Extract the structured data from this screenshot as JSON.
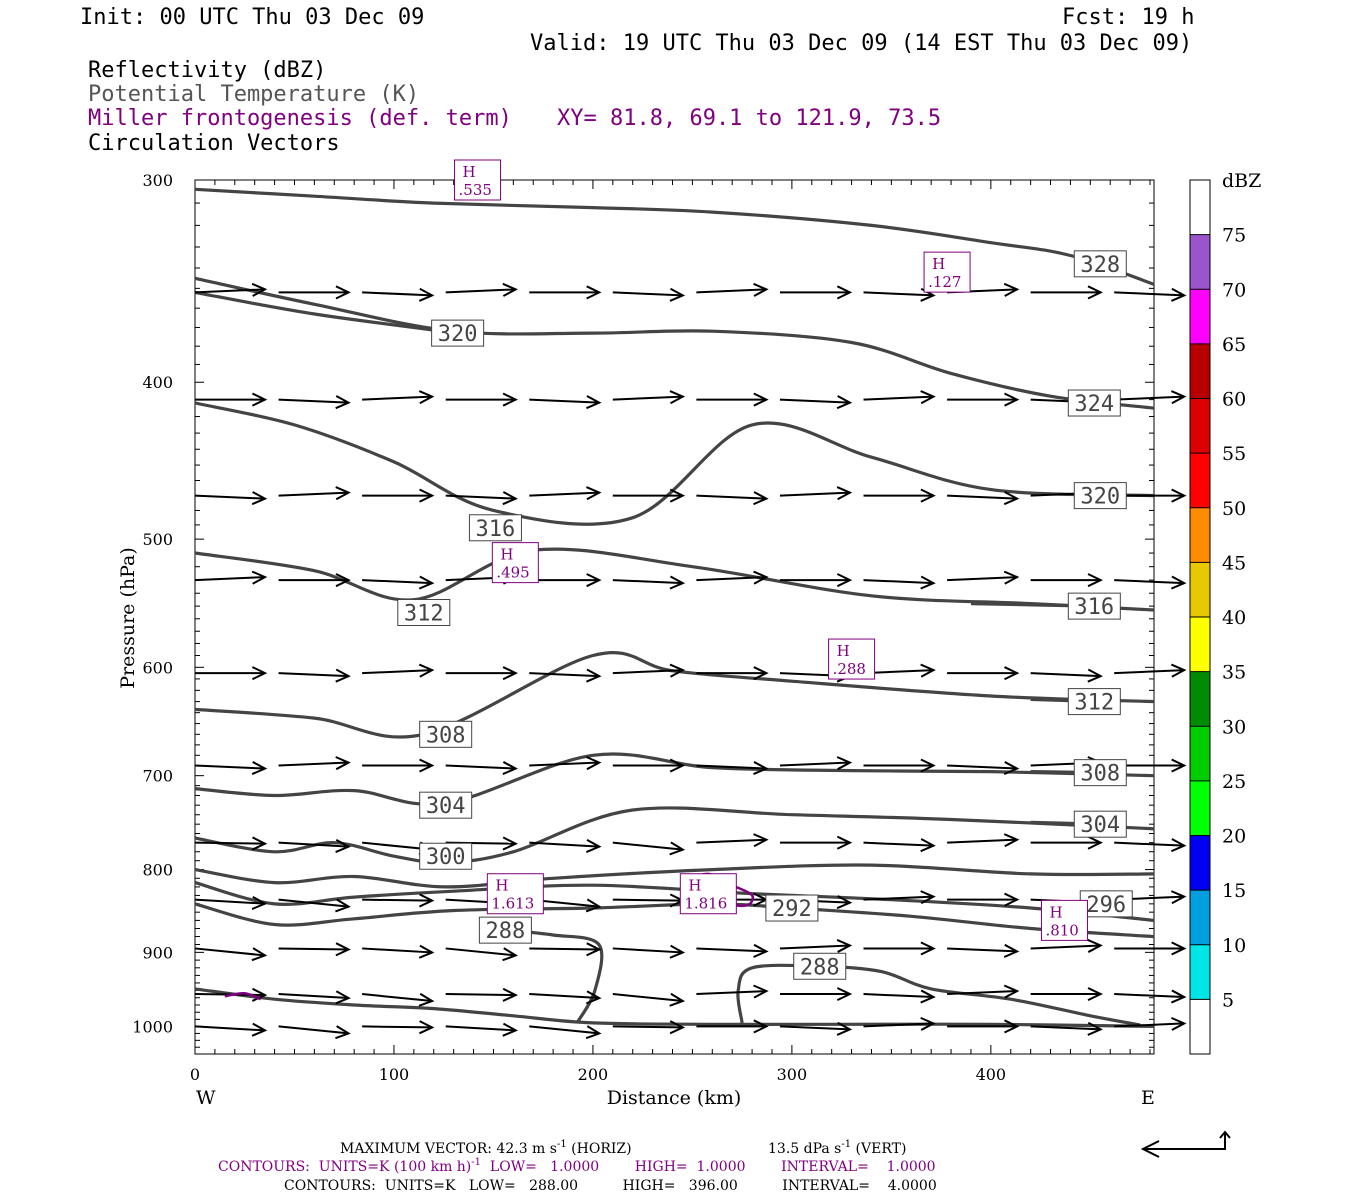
{
  "header": {
    "init": "Init: 00 UTC Thu 03 Dec 09",
    "fcst": "Fcst:   19 h",
    "valid": "Valid: 19 UTC Thu 03 Dec 09 (14 EST Thu 03 Dec 09)",
    "field1": "Reflectivity (dBZ)",
    "field2": "Potential Temperature (K)",
    "field3": "Miller frontogenesis (def. term)",
    "xy": "XY=  81.8, 69.1 to 121.9, 73.5",
    "field4": "Circulation Vectors"
  },
  "colors": {
    "theta_contour": "#444444",
    "frontogenesis": "#800080",
    "vectors": "#000000"
  },
  "chart_data": {
    "type": "line",
    "xlabel": "Distance (km)",
    "ylabel": "Pressure (hPa)",
    "xlim": [
      0,
      482
    ],
    "ylim": [
      1040,
      300
    ],
    "y_log_scale": true,
    "x_ticks": [
      0,
      100,
      200,
      300,
      400
    ],
    "y_ticks": [
      300,
      400,
      500,
      600,
      700,
      800,
      900,
      1000
    ],
    "left_label": "W",
    "right_label": "E",
    "theta_contours": [
      {
        "value": 328,
        "label": "328",
        "label_x": 455,
        "label_y": 338,
        "points": [
          [
            0,
            304
          ],
          [
            60,
            307
          ],
          [
            120,
            310
          ],
          [
            200,
            312
          ],
          [
            260,
            314
          ],
          [
            340,
            320
          ],
          [
            400,
            328
          ],
          [
            440,
            334
          ],
          [
            482,
            348
          ]
        ]
      },
      {
        "value": 324,
        "label": "324",
        "label_x": 452,
        "label_y": 412,
        "points": [
          [
            0,
            345
          ],
          [
            60,
            358
          ],
          [
            130,
            372
          ],
          [
            200,
            373
          ],
          [
            260,
            372
          ],
          [
            330,
            378
          ],
          [
            380,
            395
          ],
          [
            430,
            408
          ],
          [
            482,
            415
          ]
        ]
      },
      {
        "value": 320,
        "label": "320",
        "label_x": 132,
        "label_y": 373,
        "points": [
          [
            0,
            352
          ],
          [
            60,
            363
          ],
          [
            132,
            373
          ]
        ]
      },
      {
        "value": 320,
        "label": "320",
        "label_x": 455,
        "label_y": 470,
        "points": [
          [
            0,
            412
          ],
          [
            50,
            425
          ],
          [
            100,
            448
          ],
          [
            150,
            480
          ],
          [
            220,
            485
          ],
          [
            280,
            425
          ],
          [
            340,
            445
          ],
          [
            400,
            466
          ],
          [
            482,
            470
          ]
        ]
      },
      {
        "value": 316,
        "label": "316",
        "label_x": 151,
        "label_y": 492,
        "points": [
          [
            0,
            510
          ],
          [
            60,
            523
          ],
          [
            110,
            545
          ],
          [
            170,
            508
          ],
          [
            250,
            520
          ],
          [
            340,
            542
          ],
          [
            420,
            548
          ],
          [
            482,
            553
          ]
        ]
      },
      {
        "value": 316,
        "label": "316",
        "label_x": 452,
        "label_y": 550,
        "points": [
          [
            390,
            548
          ],
          [
            452,
            550
          ]
        ]
      },
      {
        "value": 312,
        "label": "312",
        "label_x": 115,
        "label_y": 555,
        "points": [
          [
            0,
            637
          ],
          [
            60,
            645
          ],
          [
            115,
            660
          ],
          [
            200,
            590
          ],
          [
            240,
            603
          ],
          [
            300,
            612
          ],
          [
            400,
            625
          ],
          [
            482,
            630
          ]
        ]
      },
      {
        "value": 312,
        "label": "312",
        "label_x": 452,
        "label_y": 630,
        "points": [
          [
            420,
            628
          ],
          [
            452,
            630
          ]
        ]
      },
      {
        "value": 308,
        "label": "308",
        "label_x": 126,
        "label_y": 660,
        "points": [
          [
            0,
            713
          ],
          [
            40,
            720
          ],
          [
            80,
            715
          ],
          [
            126,
            728
          ],
          [
            200,
            680
          ],
          [
            260,
            692
          ],
          [
            330,
            695
          ],
          [
            400,
            696
          ],
          [
            482,
            700
          ]
        ]
      },
      {
        "value": 308,
        "label": "308",
        "label_x": 455,
        "label_y": 697,
        "points": [
          [
            420,
            696
          ],
          [
            455,
            697
          ]
        ]
      },
      {
        "value": 304,
        "label": "304",
        "label_x": 126,
        "label_y": 730,
        "points": [
          [
            0,
            765
          ],
          [
            40,
            780
          ],
          [
            70,
            770
          ],
          [
            100,
            785
          ],
          [
            126,
            792
          ],
          [
            160,
            780
          ],
          [
            220,
            735
          ],
          [
            300,
            740
          ],
          [
            380,
            745
          ],
          [
            482,
            755
          ]
        ]
      },
      {
        "value": 304,
        "label": "304",
        "label_x": 455,
        "label_y": 750,
        "points": [
          [
            420,
            748
          ],
          [
            455,
            750
          ]
        ]
      },
      {
        "value": 300,
        "label": "300",
        "label_x": 126,
        "label_y": 785,
        "points": [
          [
            0,
            800
          ],
          [
            40,
            815
          ],
          [
            80,
            808
          ],
          [
            126,
            820
          ],
          [
            180,
            810
          ],
          [
            260,
            800
          ],
          [
            340,
            795
          ],
          [
            420,
            805
          ],
          [
            482,
            805
          ]
        ]
      },
      {
        "value": 296,
        "label": "296",
        "label_x": 458,
        "label_y": 840,
        "points": [
          [
            0,
            815
          ],
          [
            40,
            840
          ],
          [
            80,
            832
          ],
          [
            130,
            825
          ],
          [
            200,
            818
          ],
          [
            280,
            828
          ],
          [
            350,
            835
          ],
          [
            420,
            845
          ],
          [
            482,
            860
          ]
        ]
      },
      {
        "value": 292,
        "label": "292",
        "label_x": 300,
        "label_y": 845,
        "points": [
          [
            0,
            840
          ],
          [
            40,
            865
          ],
          [
            80,
            858
          ],
          [
            130,
            848
          ],
          [
            200,
            845
          ],
          [
            260,
            840
          ],
          [
            300,
            845
          ],
          [
            360,
            855
          ],
          [
            420,
            870
          ],
          [
            482,
            880
          ]
        ]
      },
      {
        "value": 288,
        "label": "288",
        "label_x": 156,
        "label_y": 872,
        "points": [
          [
            0,
            948
          ],
          [
            40,
            962
          ],
          [
            80,
            970
          ],
          [
            120,
            975
          ],
          [
            160,
            985
          ],
          [
            200,
            995
          ],
          [
            260,
            997
          ],
          [
            320,
            997
          ],
          [
            400,
            997
          ],
          [
            482,
            1000
          ]
        ]
      },
      {
        "value": 288,
        "label": "288",
        "label_x": 156,
        "label_y": 872,
        "points": [
          [
            156,
            872
          ],
          [
            180,
            878
          ],
          [
            203,
            890
          ],
          [
            201,
            950
          ],
          [
            192,
            995
          ]
        ]
      },
      {
        "value": 288,
        "label": "288",
        "label_x": 314,
        "label_y": 918,
        "points": [
          [
            275,
            995
          ],
          [
            273,
            950
          ],
          [
            280,
            920
          ],
          [
            314,
            918
          ],
          [
            345,
            925
          ],
          [
            370,
            948
          ],
          [
            410,
            962
          ],
          [
            450,
            985
          ],
          [
            475,
            998
          ]
        ]
      }
    ],
    "frontogenesis_maxima": [
      {
        "label_top": "H",
        "label_value": ".535",
        "x": 142,
        "y": 300
      },
      {
        "label_top": "H",
        "label_value": ".127",
        "x": 378,
        "y": 342
      },
      {
        "label_top": "H",
        "label_value": ".495",
        "x": 161,
        "y": 517
      },
      {
        "label_top": "H",
        "label_value": ".288",
        "x": 330,
        "y": 593
      },
      {
        "label_top": "H",
        "label_value": "1.613",
        "x": 161,
        "y": 828
      },
      {
        "label_top": "H",
        "label_value": "1.816",
        "x": 258,
        "y": 828
      },
      {
        "label_top": "H",
        "label_value": ".810",
        "x": 437,
        "y": 860
      }
    ],
    "frontogenesis_contours": [
      {
        "value": 1.0,
        "points": [
          [
            248,
            812
          ],
          [
            258,
            805
          ],
          [
            270,
            818
          ],
          [
            280,
            830
          ],
          [
            277,
            842
          ],
          [
            264,
            838
          ],
          [
            256,
            822
          ]
        ]
      },
      {
        "value": 1.0,
        "points": [
          [
            15,
            958
          ],
          [
            25,
            954
          ],
          [
            33,
            962
          ]
        ]
      }
    ],
    "reflectivity_colorbar": {
      "label": "dBZ",
      "levels": [
        "5",
        "10",
        "15",
        "20",
        "25",
        "30",
        "35",
        "40",
        "45",
        "50",
        "55",
        "60",
        "65",
        "70",
        "75"
      ],
      "colors": [
        "#ffffff",
        "#00e5e5",
        "#009fe0",
        "#0000f0",
        "#00ff00",
        "#00cd00",
        "#008b00",
        "#ffff00",
        "#e8c800",
        "#ff8c00",
        "#ff0000",
        "#dc0000",
        "#b80000",
        "#ff00ff",
        "#9a55cc",
        "#ffffff"
      ]
    }
  },
  "footer": {
    "max_vector": "MAXIMUM VECTOR:  42.3 m s",
    "max_vector_exp": "-1",
    "horiz": " (HORIZ)",
    "vert_val": "13.5 dPa s",
    "vert_exp": "-1",
    "vert": " (VERT)",
    "contours1_a": "CONTOURS:  UNITS=K (100 km h)",
    "contours1_exp": "-1",
    "contours1_b": "  LOW=   1.0000        HIGH=  1.0000        INTERVAL=    1.0000",
    "contours2": "CONTOURS:  UNITS=K   LOW=   288.00          HIGH=   396.00          INTERVAL=    4.0000"
  }
}
